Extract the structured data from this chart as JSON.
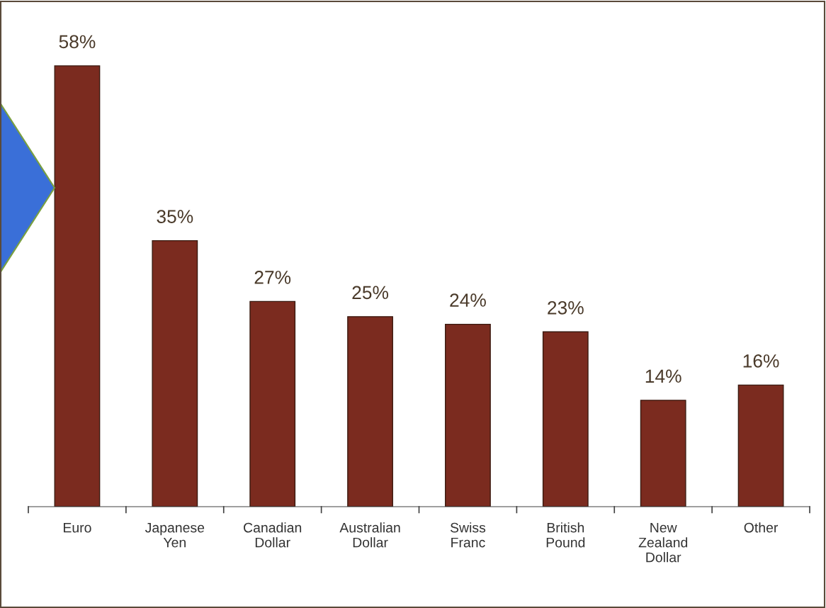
{
  "chart_data": {
    "type": "bar",
    "categories": [
      "Euro",
      "Japanese\nYen",
      "Canadian\nDollar",
      "Australian\nDollar",
      "Swiss\nFranc",
      "British\nPound",
      "New\nZealand\nDollar",
      "Other"
    ],
    "values": [
      58,
      35,
      27,
      25,
      24,
      23,
      14,
      16
    ],
    "value_labels": [
      "58%",
      "35%",
      "27%",
      "25%",
      "24%",
      "23%",
      "14%",
      "16%"
    ],
    "color": "#7b2b1f",
    "grid": false,
    "legend": false
  }
}
